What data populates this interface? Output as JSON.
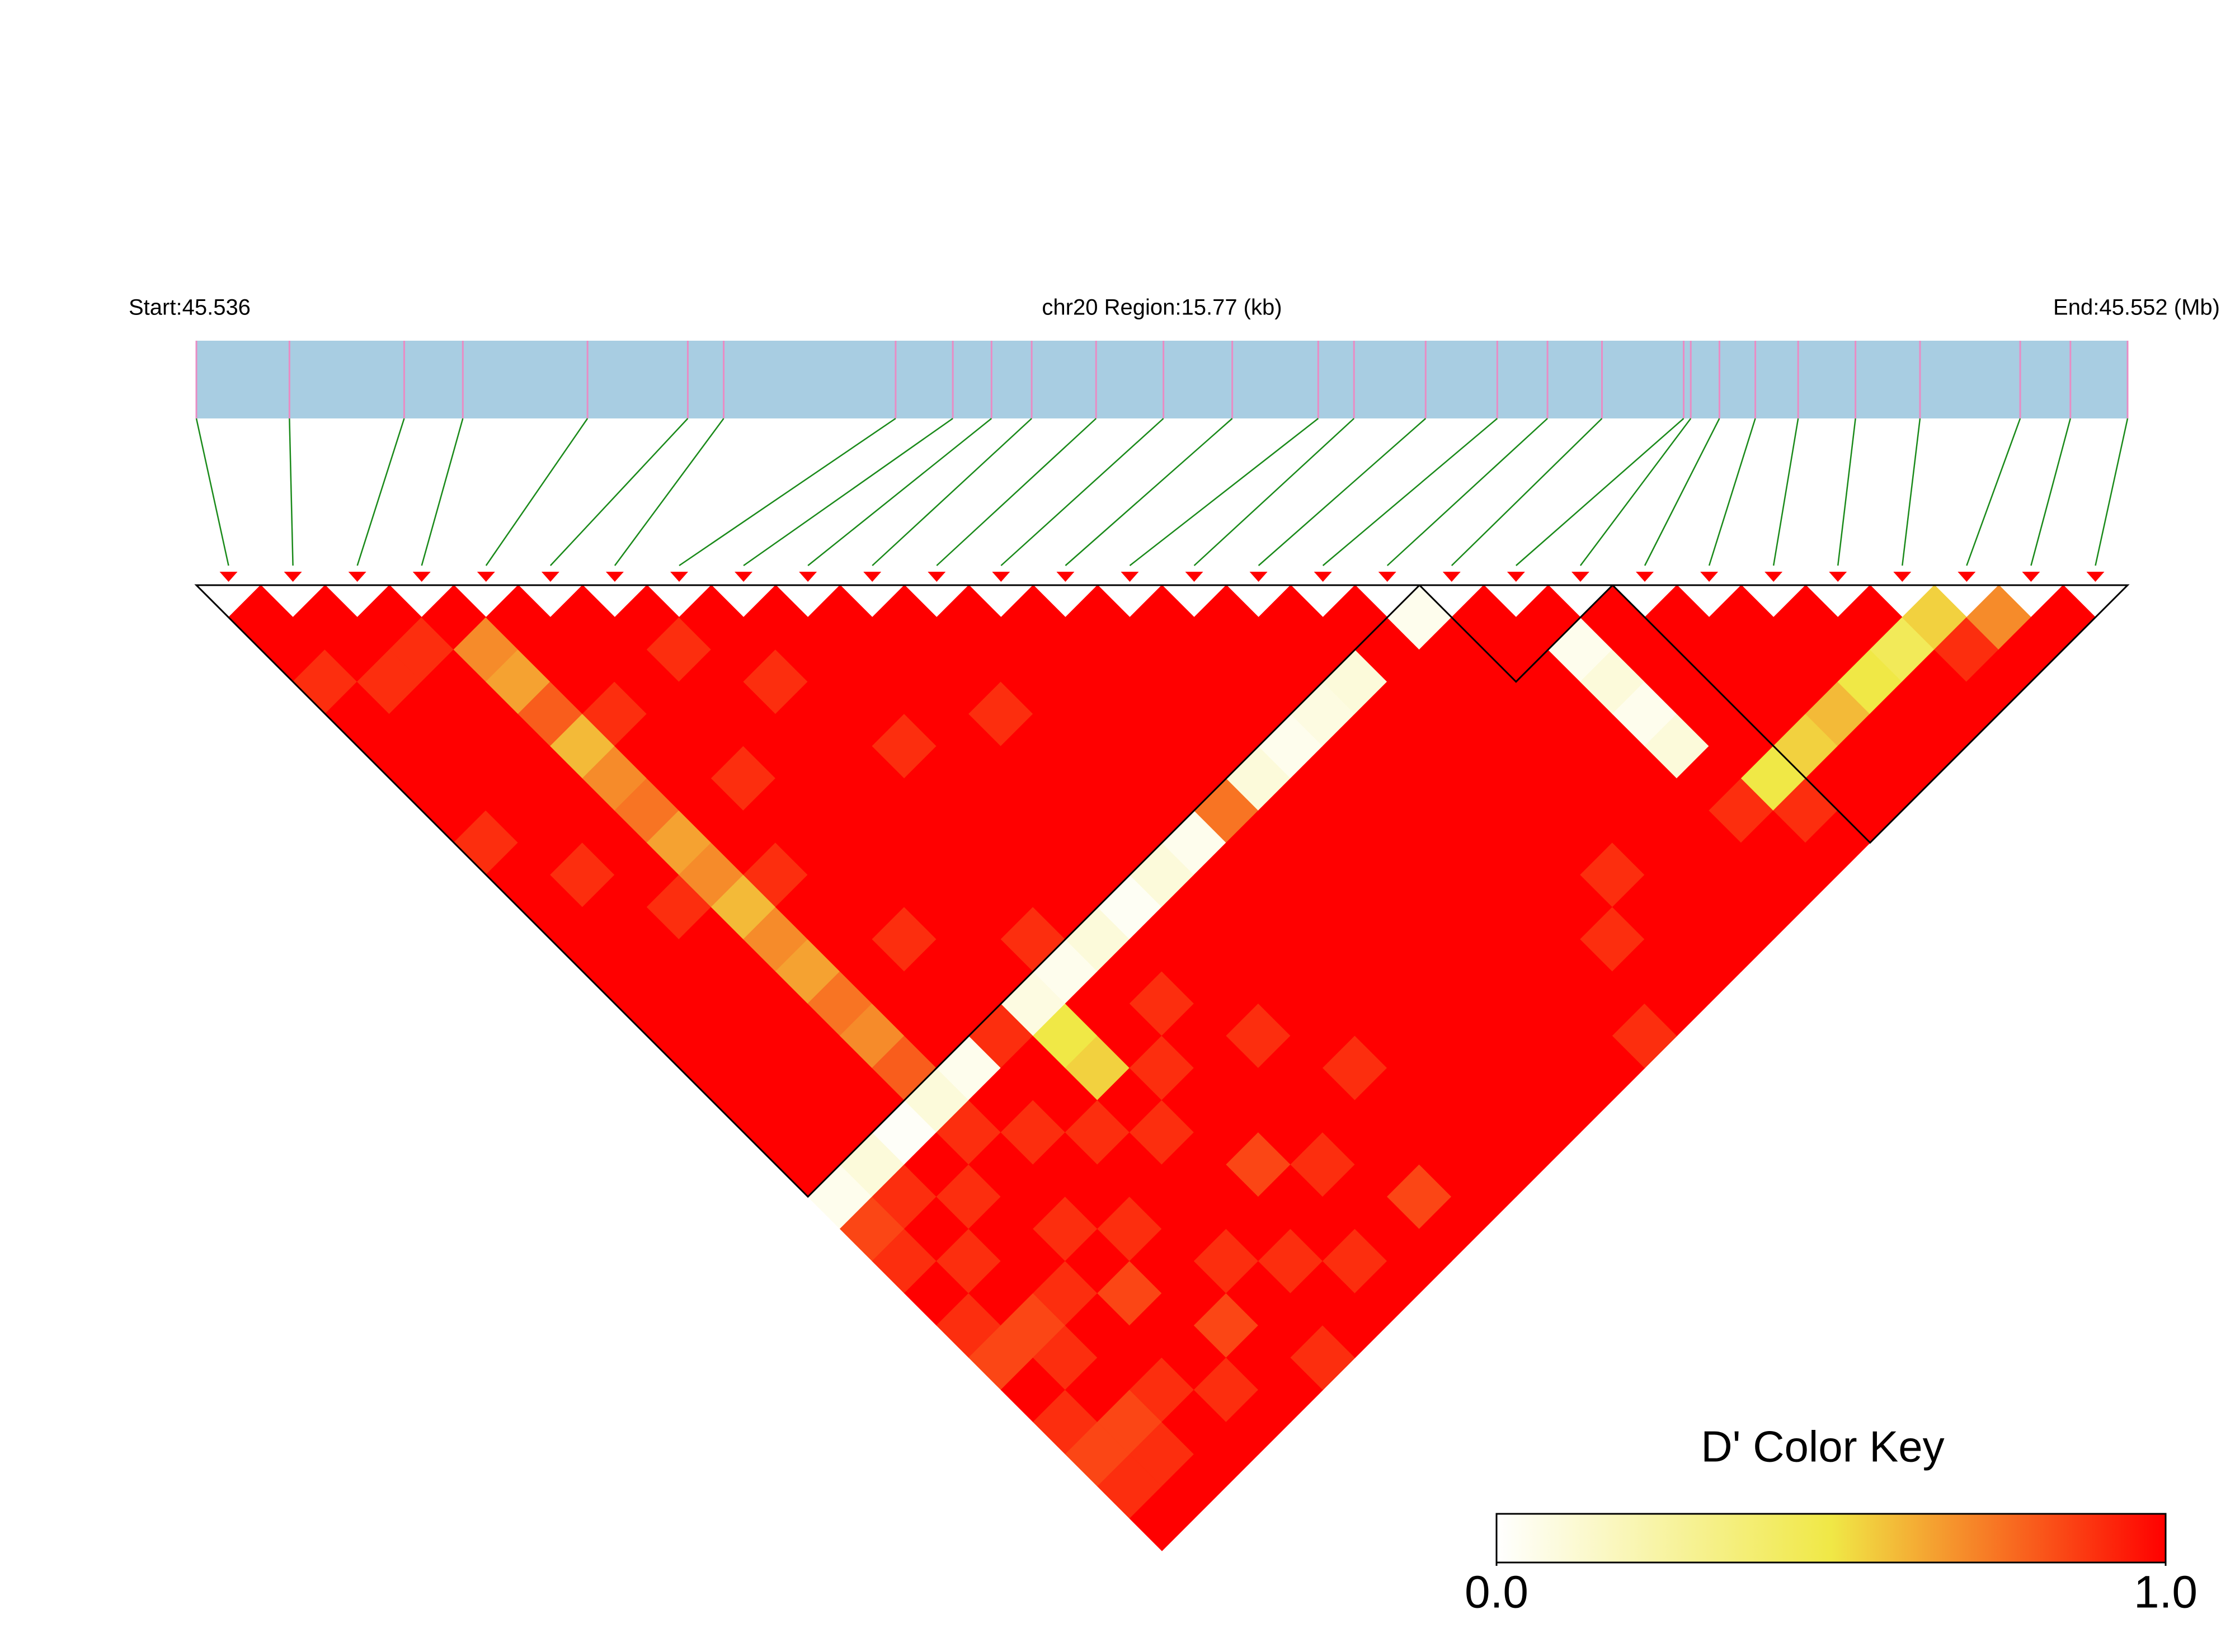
{
  "chart_data": {
    "type": "heatmap",
    "start_label": "Start:45.536",
    "region_label": "chr20 Region:15.77 (kb)",
    "end_label": "End:45.552 (Mb)",
    "xlim": [
      45536000,
      45551770
    ],
    "snp_positions": [
      45536000,
      45536760,
      45537697,
      45538176,
      45539194,
      45540013,
      45540306,
      45541710,
      45542177,
      45542493,
      45542821,
      45543347,
      45543897,
      45544459,
      45545161,
      45545453,
      45546038,
      45546623,
      45547033,
      45547478,
      45548145,
      45548203,
      45548437,
      45548730,
      45549080,
      45549548,
      45550075,
      45550893,
      45551303,
      45551770
    ],
    "bar_color": "#a8cde2",
    "snp_line_color": "#e98cc4",
    "connector_color": "#1a8a1a",
    "marker_color": "#ff0000",
    "block_color": "#000000",
    "dprime": [
      [
        1,
        1,
        0.9,
        1,
        1,
        1,
        1,
        0.9,
        1,
        1,
        1,
        1,
        1,
        1,
        1,
        1,
        1,
        1,
        0.05,
        0.85,
        0.9,
        1,
        0.9,
        0.85,
        1,
        0.9,
        0.85,
        0.9,
        1
      ],
      [
        1,
        1,
        0.9,
        1,
        1,
        1,
        1,
        1,
        0.9,
        1,
        1,
        1,
        1,
        1,
        1,
        1,
        1,
        0.1,
        0.9,
        1,
        0.9,
        1,
        0.85,
        0.9,
        1,
        0.85,
        0.9,
        1
      ],
      [
        1,
        0.9,
        1,
        1,
        1,
        1,
        1,
        1,
        1,
        0.9,
        1,
        1,
        1,
        1,
        1,
        1,
        0.02,
        1,
        0.9,
        1,
        1,
        0.9,
        1,
        1,
        0.9,
        1,
        1
      ],
      [
        1,
        0.7,
        0.65,
        0.8,
        0.6,
        0.7,
        0.75,
        0.65,
        0.7,
        0.6,
        0.7,
        0.65,
        0.75,
        0.7,
        0.8,
        0.1,
        0.9,
        1,
        1,
        0.9,
        1,
        0.85,
        1,
        1,
        0.9,
        1
      ],
      [
        1,
        1,
        1,
        0.9,
        1,
        1,
        1,
        1,
        0.9,
        1,
        1,
        1,
        1,
        1,
        0.05,
        1,
        0.9,
        1,
        1,
        0.9,
        1,
        1,
        0.85,
        1,
        1
      ],
      [
        1,
        1,
        1,
        1,
        1,
        0.9,
        1,
        1,
        1,
        1,
        0.9,
        1,
        1,
        0.9,
        1,
        1,
        0.9,
        1,
        1,
        1,
        0.9,
        1,
        1,
        0.9
      ],
      [
        1,
        0.9,
        1,
        1,
        1,
        1,
        1,
        1,
        1,
        1,
        1,
        1,
        0.08,
        0.5,
        0.55,
        1,
        0.9,
        1,
        1,
        1,
        0.9,
        1,
        1
      ],
      [
        1,
        1,
        0.9,
        1,
        1,
        1,
        1,
        1,
        1,
        1,
        0.9,
        0.05,
        1,
        1,
        0.9,
        1,
        1,
        0.85,
        1,
        1,
        0.9,
        1
      ],
      [
        1,
        1,
        1,
        1,
        0.9,
        1,
        1,
        1,
        1,
        1,
        0.1,
        1,
        0.9,
        1,
        1,
        1,
        1,
        0.9,
        1,
        1,
        1
      ],
      [
        1,
        1,
        1,
        1,
        1,
        1,
        1,
        1,
        1,
        0.03,
        1,
        1,
        1,
        0.9,
        1,
        1,
        1,
        1,
        0.85,
        1
      ],
      [
        1,
        1,
        1,
        0.9,
        1,
        1,
        1,
        1,
        0.1,
        1,
        1,
        1,
        1,
        1,
        0.9,
        1,
        1,
        1,
        1
      ],
      [
        1,
        1,
        1,
        1,
        1,
        1,
        1,
        0.05,
        1,
        1,
        1,
        1,
        1,
        1,
        1,
        1,
        1,
        1
      ],
      [
        1,
        1,
        1,
        1,
        1,
        1,
        0.75,
        1,
        1,
        1,
        1,
        1,
        1,
        1,
        1,
        1,
        1
      ],
      [
        1,
        1,
        1,
        1,
        1,
        0.1,
        1,
        1,
        1,
        1,
        1,
        1,
        1,
        1,
        1,
        1
      ],
      [
        1,
        1,
        1,
        1,
        0.05,
        1,
        1,
        1,
        1,
        1,
        1,
        1,
        1,
        1,
        1
      ],
      [
        1,
        1,
        1,
        0.08,
        1,
        1,
        1,
        1,
        1,
        1,
        1,
        1,
        1,
        0.9
      ],
      [
        1,
        1,
        0.1,
        1,
        1,
        1,
        1,
        1,
        1,
        1,
        0.9,
        1,
        1
      ],
      [
        1,
        1,
        1,
        1,
        1,
        1,
        1,
        1,
        0.9,
        1,
        1,
        1
      ],
      [
        0.05,
        1,
        1,
        1,
        1,
        1,
        1,
        1,
        1,
        1,
        1
      ],
      [
        1,
        1,
        1,
        1,
        1,
        1,
        1,
        1,
        1,
        1
      ],
      [
        1,
        0.05,
        0.1,
        0.05,
        0.1,
        1,
        0.9,
        1,
        1
      ],
      [
        1,
        1,
        1,
        1,
        1,
        0.5,
        0.9,
        1
      ],
      [
        1,
        1,
        1,
        1,
        0.55,
        1,
        1
      ],
      [
        1,
        1,
        1,
        0.6,
        1,
        1
      ],
      [
        1,
        1,
        0.5,
        1,
        1
      ],
      [
        1,
        0.45,
        1,
        1
      ],
      [
        0.55,
        0.9,
        1
      ],
      [
        0.7,
        1
      ],
      [
        1
      ]
    ],
    "blocks": [
      [
        0,
        18
      ],
      [
        19,
        21
      ],
      [
        22,
        29
      ]
    ],
    "colorbar": {
      "title": "D' Color Key",
      "lim": [
        0,
        1
      ],
      "ticks": [
        {
          "value": 0,
          "label": "0.0"
        },
        {
          "value": 1,
          "label": "1.0"
        }
      ],
      "colors": [
        "#ffffff",
        "#f0e846",
        "#ff0000"
      ]
    }
  }
}
